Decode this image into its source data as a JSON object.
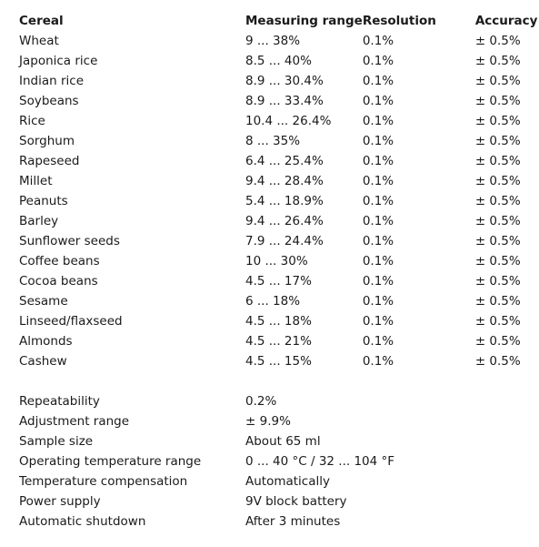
{
  "headers": {
    "cereal": "Cereal",
    "range": "Measuring range",
    "resolution": "Resolution",
    "accuracy": "Accuracy"
  },
  "cereals": [
    {
      "name": "Wheat",
      "range": "9 ... 38%",
      "resolution": "0.1%",
      "accuracy": "± 0.5%"
    },
    {
      "name": "Japonica rice",
      "range": "8.5 ... 40%",
      "resolution": "0.1%",
      "accuracy": "± 0.5%"
    },
    {
      "name": "Indian rice",
      "range": "8.9 ... 30.4%",
      "resolution": "0.1%",
      "accuracy": "± 0.5%"
    },
    {
      "name": "Soybeans",
      "range": "8.9 ... 33.4%",
      "resolution": "0.1%",
      "accuracy": "± 0.5%"
    },
    {
      "name": "Rice",
      "range": "10.4 ... 26.4%",
      "resolution": "0.1%",
      "accuracy": "± 0.5%"
    },
    {
      "name": "Sorghum",
      "range": "8 ... 35%",
      "resolution": "0.1%",
      "accuracy": "± 0.5%"
    },
    {
      "name": "Rapeseed",
      "range": "6.4 ... 25.4%",
      "resolution": "0.1%",
      "accuracy": "± 0.5%"
    },
    {
      "name": "Millet",
      "range": "9.4 ... 28.4%",
      "resolution": "0.1%",
      "accuracy": "± 0.5%"
    },
    {
      "name": "Peanuts",
      "range": "5.4 ... 18.9%",
      "resolution": "0.1%",
      "accuracy": "± 0.5%"
    },
    {
      "name": "Barley",
      "range": "9.4 ... 26.4%",
      "resolution": "0.1%",
      "accuracy": "± 0.5%"
    },
    {
      "name": "Sunflower seeds",
      "range": "7.9 ... 24.4%",
      "resolution": "0.1%",
      "accuracy": "± 0.5%"
    },
    {
      "name": "Coffee beans",
      "range": "10 ... 30%",
      "resolution": "0.1%",
      "accuracy": "± 0.5%"
    },
    {
      "name": "Cocoa beans",
      "range": "4.5 ... 17%",
      "resolution": "0.1%",
      "accuracy": "± 0.5%"
    },
    {
      "name": "Sesame",
      "range": "6 ... 18%",
      "resolution": "0.1%",
      "accuracy": "± 0.5%"
    },
    {
      "name": "Linseed/flaxseed",
      "range": "4.5 ... 18%",
      "resolution": "0.1%",
      "accuracy": "± 0.5%"
    },
    {
      "name": "Almonds",
      "range": "4.5 ... 21%",
      "resolution": "0.1%",
      "accuracy": "± 0.5%"
    },
    {
      "name": "Cashew",
      "range": "4.5 ... 15%",
      "resolution": "0.1%",
      "accuracy": "± 0.5%"
    }
  ],
  "specs": [
    {
      "label": "Repeatability",
      "value": "0.2%"
    },
    {
      "label": "Adjustment range",
      "value": "± 9.9%"
    },
    {
      "label": "Sample size",
      "value": "About 65 ml"
    },
    {
      "label": "Operating temperature range",
      "value": "0 ... 40 °C / 32 ... 104 °F"
    },
    {
      "label": "Temperature compensation",
      "value": "Automatically"
    },
    {
      "label": "Power supply",
      "value": "9V block battery"
    },
    {
      "label": "Automatic shutdown",
      "value": "After 3 minutes"
    }
  ]
}
